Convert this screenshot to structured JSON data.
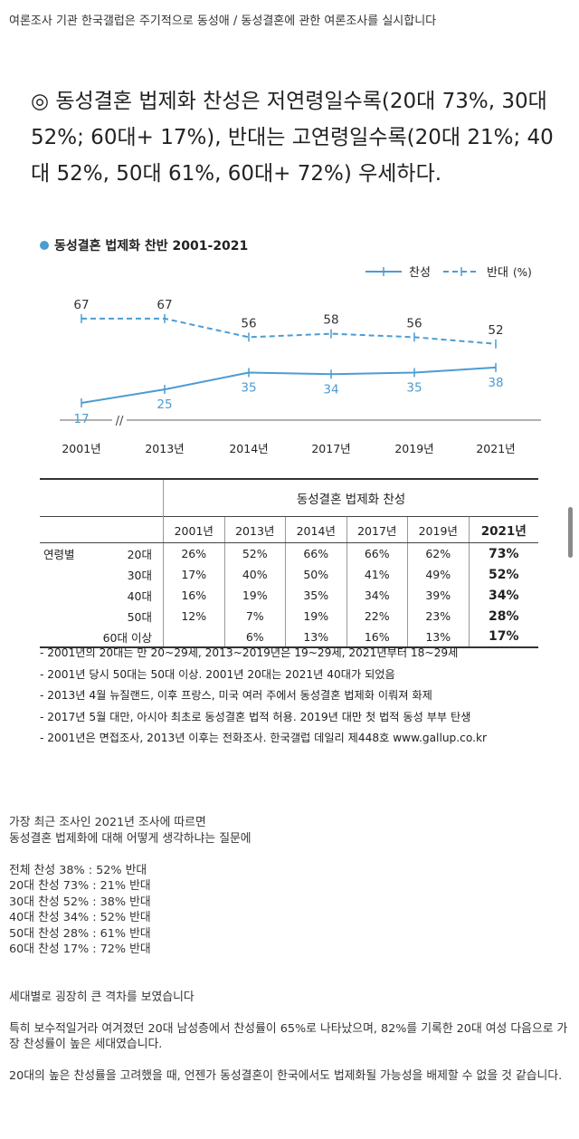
{
  "intro": "여론조사 기관 한국갤럽은 주기적으로 동성애 / 동성결혼에 관한 여론조사를 실시합니다",
  "headline": "◎ 동성결혼 법제화 찬성은 저연령일수록(20대 73%, 30대 52%; 60대+ 17%), 반대는 고연령일수록(20대 21%; 40대 52%, 50대 61%, 60대+ 72%) 우세하다.",
  "colors": {
    "accent": "#4b9cd3",
    "text": "#222222"
  },
  "chart_data": [
    {
      "type": "line",
      "title": "동성결혼 법제화 찬반 2001-2021",
      "categories": [
        "2001년",
        "2013년",
        "2014년",
        "2017년",
        "2019년",
        "2021년"
      ],
      "axis_break_after": "2001년",
      "series": [
        {
          "name": "찬성",
          "style": "solid",
          "values": [
            17,
            25,
            35,
            34,
            35,
            38
          ]
        },
        {
          "name": "반대",
          "style": "dashed",
          "values": [
            67,
            67,
            56,
            58,
            56,
            52
          ]
        }
      ],
      "legend_unit": "(%)",
      "legend_position": "top-right",
      "ylim": [
        10,
        75
      ],
      "grid": false
    },
    {
      "type": "table",
      "header": "동성결혼 법제화 찬성",
      "row_group": "연령별",
      "columns": [
        "2001년",
        "2013년",
        "2014년",
        "2017년",
        "2019년",
        "2021년"
      ],
      "rows": [
        {
          "label": "20대",
          "values": [
            "26%",
            "52%",
            "66%",
            "66%",
            "62%",
            "73%"
          ]
        },
        {
          "label": "30대",
          "values": [
            "17%",
            "40%",
            "50%",
            "41%",
            "49%",
            "52%"
          ]
        },
        {
          "label": "40대",
          "values": [
            "16%",
            "19%",
            "35%",
            "34%",
            "39%",
            "34%"
          ]
        },
        {
          "label": "50대",
          "values": [
            "12%",
            "7%",
            "19%",
            "22%",
            "23%",
            "28%"
          ]
        },
        {
          "label": "60대 이상",
          "values": [
            "",
            "6%",
            "13%",
            "16%",
            "13%",
            "17%"
          ]
        }
      ]
    }
  ],
  "notes": [
    "- 2001년의 20대는 만 20~29세, 2013~2019년은 19~29세, 2021년부터 18~29세",
    "- 2001년 당시 50대는 50대 이상. 2001년 20대는 2021년 40대가 되었음",
    "- 2013년 4월 뉴질랜드, 이후 프랑스, 미국 여러 주에서 동성결혼 법제화 이뤄져 화제",
    "- 2017년 5월 대만, 아시아 최초로 동성결혼 법적 허용. 2019년 대만 첫 법적 동성 부부 탄생",
    "- 2001년은 면접조사, 2013년 이후는 전화조사. 한국갤럽 데일리 제448호 www.gallup.co.kr"
  ],
  "body": {
    "p1_line1": "가장 최근 조사인 2021년 조사에 따르면",
    "p1_line2": "동성결혼 법제화에 대해 어떻게 생각하냐는 질문에",
    "stats": [
      "전체 찬성 38% : 52% 반대",
      "20대 찬성 73% : 21% 반대",
      "30대 찬성 52% : 38% 반대",
      "40대 찬성 34% : 52% 반대",
      "50대 찬성 28% : 61% 반대",
      "60대 찬성 17% : 72% 반대"
    ],
    "p3": "세대별로 굉장히 큰 격차를 보였습니다",
    "p4": "특히 보수적일거라 여겨졌던 20대 남성층에서 찬성률이 65%로 나타났으며, 82%를 기록한 20대 여성 다음으로 가장 찬성률이 높은 세대였습니다.",
    "p5": "20대의 높은 찬성률을 고려했을 때, 언젠가 동성결혼이 한국에서도 법제화될 가능성을 배제할 수 없을 것 같습니다."
  }
}
